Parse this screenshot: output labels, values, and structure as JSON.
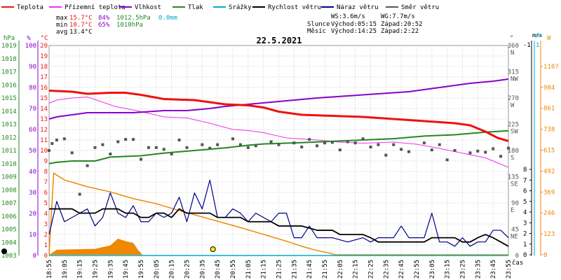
{
  "chart_data": {
    "type": "line",
    "title": "22.5.2021",
    "legend": [
      {
        "label": "Teplota",
        "color": "#ee1111"
      },
      {
        "label": "Přízemní teplota",
        "color": "#ee33ee"
      },
      {
        "label": "Vlhkost",
        "color": "#8800cc"
      },
      {
        "label": "Tlak",
        "color": "#228822"
      },
      {
        "label": "Srážky",
        "color": "#00aacc"
      },
      {
        "label": "Rychlost větru",
        "color": "#000000"
      },
      {
        "label": "Náraz větru",
        "color": "#000088"
      },
      {
        "label": "Směr větru",
        "color": "#555555"
      }
    ],
    "stats": {
      "max": {
        "label": "max",
        "temp": "15.7°C",
        "hum": "84%",
        "press": "1012.5hPa",
        "rain": "0.0mm"
      },
      "min": {
        "label": "min",
        "temp": "10.7°C",
        "hum": "65%",
        "press": "1010hPa"
      },
      "avg": {
        "label": "avg",
        "temp": "13.4°C"
      },
      "ws": "WS:3.6m/s",
      "wg": "WG:7.7m/s",
      "sun": {
        "label": "Slunce",
        "rise": "Východ:05:15",
        "set": "Západ:20:52"
      },
      "moon": {
        "label": "Měsíc",
        "rise": "Východ:14:25",
        "set": "Západ:2:22"
      }
    },
    "axes": {
      "hpa": {
        "unit": "hPa",
        "ticks": [
          "1019",
          "1018",
          "1017",
          "1016",
          "1015",
          "1014",
          "1013",
          "1012",
          "1011",
          "1010",
          "1009",
          "1008",
          "1007",
          "1006",
          "1005",
          "1004",
          "1003"
        ],
        "color": "#228822"
      },
      "pct": {
        "unit": "%",
        "ticks": [
          "100",
          "90",
          "80",
          "70",
          "60",
          "50",
          "40",
          "30",
          "20",
          "10",
          "0"
        ],
        "color": "#8800cc"
      },
      "temp": {
        "unit": "°C",
        "ticks": [
          "20",
          "19",
          "18",
          "17",
          "16",
          "15",
          "14",
          "13",
          "12",
          "11",
          "10",
          "9",
          "8",
          "7",
          "6",
          "5",
          "4",
          "3",
          "2",
          "1",
          "0"
        ],
        "color": "#ee1111"
      },
      "dir": {
        "unit": "°",
        "labels": [
          {
            "deg": "360",
            "name": "N",
            "v": 360
          },
          {
            "deg": "315",
            "name": "NW",
            "v": 315
          },
          {
            "deg": "270",
            "name": "W",
            "v": 270
          },
          {
            "deg": "225",
            "name": "SW",
            "v": 225
          },
          {
            "deg": "180",
            "name": "S",
            "v": 180
          },
          {
            "deg": "135",
            "name": "SE",
            "v": 135
          },
          {
            "deg": "90",
            "name": "E",
            "v": 90
          },
          {
            "deg": "45",
            "name": "NE",
            "v": 45
          },
          {
            "deg": "0",
            "name": "",
            "v": 0
          }
        ]
      },
      "ms": {
        "unit": "m/s",
        "ticks": [
          "8",
          "7",
          "6",
          "5",
          "4",
          "3",
          "2",
          "1",
          "0"
        ],
        "top_value": "-1",
        "color": "#000000"
      },
      "mm": {
        "unit": "mm",
        "top_value": "1",
        "color": "#00aacc"
      },
      "wm2": {
        "unit": "W",
        "ticks": [
          "1107",
          "984",
          "861",
          "738",
          "615",
          "492",
          "369",
          "246",
          "123",
          "0"
        ],
        "color": "#ee8800"
      }
    },
    "x": {
      "label": "čas",
      "start_min": 1135,
      "end_min": 1435,
      "ticks": [
        "18:55",
        "19:05",
        "19:15",
        "19:25",
        "19:35",
        "19:45",
        "19:55",
        "20:05",
        "20:15",
        "20:25",
        "20:35",
        "20:45",
        "20:55",
        "21:05",
        "21:15",
        "21:25",
        "21:35",
        "21:45",
        "21:55",
        "22:05",
        "22:15",
        "22:25",
        "22:35",
        "22:45",
        "22:55",
        "23:05",
        "23:15",
        "23:25",
        "23:35",
        "23:45",
        "23:55"
      ]
    },
    "series": {
      "temperature": [
        [
          1135,
          15.7
        ],
        [
          1150,
          15.6
        ],
        [
          1160,
          15.4
        ],
        [
          1175,
          15.5
        ],
        [
          1185,
          15.5
        ],
        [
          1195,
          15.3
        ],
        [
          1210,
          14.9
        ],
        [
          1230,
          14.8
        ],
        [
          1250,
          14.4
        ],
        [
          1265,
          14.3
        ],
        [
          1275,
          14.1
        ],
        [
          1285,
          13.7
        ],
        [
          1300,
          13.4
        ],
        [
          1320,
          13.3
        ],
        [
          1340,
          13.2
        ],
        [
          1360,
          13.0
        ],
        [
          1380,
          12.8
        ],
        [
          1400,
          12.6
        ],
        [
          1410,
          12.4
        ],
        [
          1420,
          11.8
        ],
        [
          1428,
          11.2
        ],
        [
          1435,
          10.9
        ]
      ],
      "ground_temperature": [
        [
          1135,
          14.5
        ],
        [
          1140,
          14.8
        ],
        [
          1150,
          15.0
        ],
        [
          1160,
          15.1
        ],
        [
          1170,
          14.6
        ],
        [
          1178,
          14.2
        ],
        [
          1185,
          14.0
        ],
        [
          1195,
          13.7
        ],
        [
          1210,
          13.2
        ],
        [
          1225,
          13.1
        ],
        [
          1240,
          12.6
        ],
        [
          1255,
          12.0
        ],
        [
          1265,
          11.9
        ],
        [
          1275,
          11.7
        ],
        [
          1290,
          11.2
        ],
        [
          1310,
          11.0
        ],
        [
          1325,
          10.8
        ],
        [
          1340,
          10.7
        ],
        [
          1360,
          10.8
        ],
        [
          1375,
          10.6
        ],
        [
          1390,
          10.2
        ],
        [
          1400,
          9.9
        ],
        [
          1410,
          9.6
        ],
        [
          1420,
          9.3
        ],
        [
          1430,
          8.7
        ],
        [
          1435,
          8.4
        ]
      ],
      "humidity": [
        [
          1135,
          65
        ],
        [
          1140,
          66
        ],
        [
          1150,
          67
        ],
        [
          1160,
          68
        ],
        [
          1170,
          68
        ],
        [
          1190,
          68
        ],
        [
          1210,
          69
        ],
        [
          1225,
          69
        ],
        [
          1240,
          70
        ],
        [
          1250,
          71
        ],
        [
          1265,
          72
        ],
        [
          1280,
          73
        ],
        [
          1295,
          74
        ],
        [
          1310,
          75
        ],
        [
          1330,
          76
        ],
        [
          1350,
          77
        ],
        [
          1370,
          78
        ],
        [
          1390,
          80
        ],
        [
          1410,
          82
        ],
        [
          1425,
          83
        ],
        [
          1435,
          84
        ]
      ],
      "pressure": [
        [
          1135,
          1010
        ],
        [
          1140,
          1010.1
        ],
        [
          1150,
          1010.2
        ],
        [
          1165,
          1010.2
        ],
        [
          1175,
          1010.5
        ],
        [
          1195,
          1010.6
        ],
        [
          1210,
          1010.8
        ],
        [
          1230,
          1011.0
        ],
        [
          1250,
          1011.2
        ],
        [
          1265,
          1011.4
        ],
        [
          1275,
          1011.5
        ],
        [
          1300,
          1011.6
        ],
        [
          1320,
          1011.7
        ],
        [
          1340,
          1011.8
        ],
        [
          1360,
          1011.9
        ],
        [
          1380,
          1012.1
        ],
        [
          1400,
          1012.2
        ],
        [
          1420,
          1012.4
        ],
        [
          1435,
          1012.5
        ]
      ],
      "rain": [
        [
          1135,
          0
        ],
        [
          1435,
          0
        ]
      ],
      "wind_speed": [
        [
          1135,
          4.3
        ],
        [
          1150,
          4.3
        ],
        [
          1155,
          3.9
        ],
        [
          1165,
          3.9
        ],
        [
          1170,
          4.3
        ],
        [
          1180,
          4.3
        ],
        [
          1185,
          3.9
        ],
        [
          1190,
          3.9
        ],
        [
          1195,
          3.5
        ],
        [
          1200,
          3.5
        ],
        [
          1205,
          3.9
        ],
        [
          1210,
          3.9
        ],
        [
          1215,
          3.5
        ],
        [
          1220,
          4.3
        ],
        [
          1225,
          3.9
        ],
        [
          1240,
          3.9
        ],
        [
          1245,
          3.5
        ],
        [
          1260,
          3.5
        ],
        [
          1265,
          3.1
        ],
        [
          1280,
          3.1
        ],
        [
          1285,
          2.7
        ],
        [
          1300,
          2.7
        ],
        [
          1310,
          2.3
        ],
        [
          1320,
          2.3
        ],
        [
          1325,
          1.9
        ],
        [
          1340,
          1.9
        ],
        [
          1345,
          1.6
        ],
        [
          1350,
          1.2
        ],
        [
          1380,
          1.2
        ],
        [
          1385,
          1.6
        ],
        [
          1400,
          1.6
        ],
        [
          1405,
          1.2
        ],
        [
          1410,
          1.2
        ],
        [
          1415,
          1.6
        ],
        [
          1420,
          1.9
        ],
        [
          1425,
          1.6
        ],
        [
          1430,
          1.2
        ],
        [
          1435,
          0.8
        ]
      ],
      "wind_gust": [
        [
          1135,
          1.9
        ],
        [
          1140,
          5.0
        ],
        [
          1145,
          3.1
        ],
        [
          1150,
          3.5
        ],
        [
          1155,
          3.9
        ],
        [
          1160,
          4.3
        ],
        [
          1165,
          2.7
        ],
        [
          1170,
          3.5
        ],
        [
          1175,
          5.8
        ],
        [
          1180,
          3.9
        ],
        [
          1185,
          3.5
        ],
        [
          1190,
          4.6
        ],
        [
          1195,
          3.1
        ],
        [
          1200,
          3.1
        ],
        [
          1205,
          3.9
        ],
        [
          1210,
          3.5
        ],
        [
          1215,
          3.9
        ],
        [
          1220,
          5.4
        ],
        [
          1225,
          3.1
        ],
        [
          1230,
          5.8
        ],
        [
          1235,
          4.3
        ],
        [
          1240,
          7.0
        ],
        [
          1245,
          3.5
        ],
        [
          1250,
          3.5
        ],
        [
          1255,
          4.3
        ],
        [
          1260,
          3.9
        ],
        [
          1265,
          3.1
        ],
        [
          1270,
          3.9
        ],
        [
          1280,
          3.1
        ],
        [
          1285,
          3.9
        ],
        [
          1290,
          3.9
        ],
        [
          1295,
          1.6
        ],
        [
          1300,
          1.6
        ],
        [
          1305,
          2.7
        ],
        [
          1310,
          1.6
        ],
        [
          1320,
          1.6
        ],
        [
          1330,
          1.2
        ],
        [
          1340,
          1.6
        ],
        [
          1345,
          1.2
        ],
        [
          1350,
          1.6
        ],
        [
          1360,
          1.6
        ],
        [
          1365,
          2.7
        ],
        [
          1370,
          1.6
        ],
        [
          1380,
          1.6
        ],
        [
          1385,
          3.9
        ],
        [
          1390,
          1.2
        ],
        [
          1395,
          1.2
        ],
        [
          1400,
          0.8
        ],
        [
          1405,
          1.6
        ],
        [
          1410,
          0.8
        ],
        [
          1415,
          1.2
        ],
        [
          1420,
          1.2
        ],
        [
          1425,
          2.3
        ],
        [
          1430,
          2.3
        ],
        [
          1435,
          1.6
        ]
      ],
      "wind_direction": [
        [
          1135,
          180
        ],
        [
          1137,
          192
        ],
        [
          1140,
          198
        ],
        [
          1145,
          200
        ],
        [
          1150,
          176
        ],
        [
          1155,
          105
        ],
        [
          1160,
          154
        ],
        [
          1165,
          185
        ],
        [
          1170,
          190
        ],
        [
          1175,
          174
        ],
        [
          1180,
          195
        ],
        [
          1185,
          199
        ],
        [
          1190,
          199
        ],
        [
          1195,
          165
        ],
        [
          1200,
          185
        ],
        [
          1205,
          185
        ],
        [
          1210,
          182
        ],
        [
          1215,
          174
        ],
        [
          1220,
          198
        ],
        [
          1225,
          185
        ],
        [
          1235,
          190
        ],
        [
          1240,
          184
        ],
        [
          1245,
          190
        ],
        [
          1255,
          200
        ],
        [
          1260,
          190
        ],
        [
          1265,
          185
        ],
        [
          1270,
          188
        ],
        [
          1280,
          195
        ],
        [
          1285,
          190
        ],
        [
          1295,
          193
        ],
        [
          1300,
          186
        ],
        [
          1305,
          199
        ],
        [
          1310,
          188
        ],
        [
          1315,
          193
        ],
        [
          1320,
          194
        ],
        [
          1325,
          181
        ],
        [
          1330,
          195
        ],
        [
          1335,
          193
        ],
        [
          1340,
          200
        ],
        [
          1345,
          186
        ],
        [
          1350,
          190
        ],
        [
          1355,
          172
        ],
        [
          1360,
          190
        ],
        [
          1365,
          182
        ],
        [
          1370,
          178
        ],
        [
          1380,
          193
        ],
        [
          1385,
          181
        ],
        [
          1390,
          190
        ],
        [
          1395,
          164
        ],
        [
          1400,
          180
        ],
        [
          1410,
          176
        ],
        [
          1415,
          179
        ],
        [
          1420,
          177
        ],
        [
          1425,
          183
        ],
        [
          1430,
          170
        ],
        [
          1435,
          184
        ]
      ],
      "solar_radiation": [
        [
          1135,
          0
        ],
        [
          1138,
          480
        ],
        [
          1145,
          440
        ],
        [
          1160,
          400
        ],
        [
          1175,
          370
        ],
        [
          1190,
          330
        ],
        [
          1205,
          300
        ],
        [
          1220,
          260
        ],
        [
          1240,
          210
        ],
        [
          1260,
          160
        ],
        [
          1275,
          120
        ],
        [
          1290,
          80
        ],
        [
          1300,
          50
        ],
        [
          1310,
          25
        ],
        [
          1318,
          10
        ],
        [
          1322,
          0
        ],
        [
          1435,
          0
        ]
      ],
      "uv_area": [
        [
          1135,
          0
        ],
        [
          1140,
          30
        ],
        [
          1165,
          35
        ],
        [
          1175,
          55
        ],
        [
          1180,
          95
        ],
        [
          1185,
          80
        ],
        [
          1190,
          70
        ],
        [
          1193,
          30
        ],
        [
          1196,
          0
        ]
      ]
    },
    "markers": [
      {
        "label": "sun-marker",
        "t": 1242,
        "temp": 0.4
      }
    ]
  }
}
